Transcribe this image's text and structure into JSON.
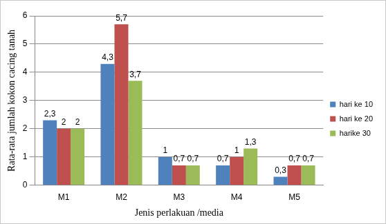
{
  "chart_data": {
    "type": "bar",
    "x_label": "Jenis perlakuan /media",
    "y_label": "Rata-rata jumlah kokon cacing tanah",
    "categories": [
      "M1",
      "M2",
      "M3",
      "M4",
      "M5"
    ],
    "series": [
      {
        "name": "hari ke 10",
        "color": "#4f81bd",
        "values": [
          2.3,
          4.3,
          1,
          0.7,
          0.3
        ],
        "value_labels": [
          "2,3",
          "4,3",
          "1",
          "0,7",
          "0,3"
        ]
      },
      {
        "name": "hari ke 20",
        "color": "#c0504d",
        "values": [
          2,
          5.7,
          0.7,
          1,
          0.7
        ],
        "value_labels": [
          "2",
          "5,7",
          "0,7",
          "1",
          "0,7"
        ]
      },
      {
        "name": "harike 30",
        "color": "#9bbb59",
        "values": [
          2,
          3.7,
          0.7,
          1.3,
          0.7
        ],
        "value_labels": [
          "2",
          "3,7",
          "0,7",
          "1,3",
          "0,7"
        ]
      }
    ],
    "ylim": [
      0,
      6
    ],
    "yticks": [
      0,
      1,
      2,
      3,
      4,
      5,
      6
    ],
    "grid": true,
    "legend": "right",
    "data_labels": true
  }
}
